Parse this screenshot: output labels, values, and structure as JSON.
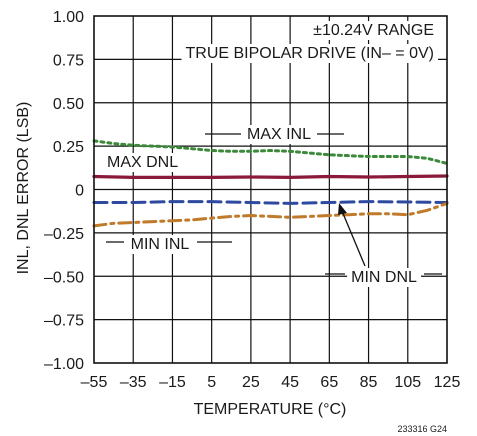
{
  "chart_data": {
    "type": "line",
    "xlabel": "TEMPERATURE (°C)",
    "ylabel": "INL, DNL ERROR (LSB)",
    "xlim": [
      -55,
      125
    ],
    "ylim": [
      -1.0,
      1.0
    ],
    "grid": true,
    "x_ticks": [
      -55,
      -35,
      -15,
      5,
      25,
      45,
      65,
      85,
      105,
      125
    ],
    "x_tick_labels": [
      "–55",
      "–35",
      "–15",
      "5",
      "25",
      "45",
      "65",
      "85",
      "105",
      "125"
    ],
    "y_ticks": [
      1.0,
      0.75,
      0.5,
      0.25,
      0,
      -0.25,
      -0.5,
      -0.75,
      -1.0
    ],
    "y_tick_labels": [
      "1.00",
      "0.75",
      "0.50",
      "0.25",
      "0",
      "–0.25",
      "–0.50",
      "–0.75",
      "–1.00"
    ],
    "annotations": {
      "range": "±10.24V RANGE",
      "drive": "TRUE BIPOLAR DRIVE (IN– = 0V)",
      "max_inl": "MAX INL",
      "max_dnl": "MAX DNL",
      "min_inl": "MIN INL",
      "min_dnl": "MIN DNL"
    },
    "figure_id": "233316 G24",
    "series": [
      {
        "name": "MAX INL",
        "color": "#3a8a3a",
        "dash": "dotted",
        "x": [
          -55,
          -45,
          -35,
          -25,
          -15,
          -5,
          5,
          15,
          25,
          35,
          45,
          55,
          65,
          75,
          85,
          95,
          105,
          115,
          125
        ],
        "y": [
          0.28,
          0.265,
          0.255,
          0.25,
          0.245,
          0.235,
          0.225,
          0.22,
          0.22,
          0.225,
          0.22,
          0.21,
          0.2,
          0.195,
          0.19,
          0.19,
          0.19,
          0.18,
          0.15
        ]
      },
      {
        "name": "MAX DNL",
        "color": "#8b1a3a",
        "dash": "solid",
        "x": [
          -55,
          -35,
          -15,
          5,
          25,
          45,
          65,
          85,
          105,
          125
        ],
        "y": [
          0.075,
          0.07,
          0.07,
          0.07,
          0.072,
          0.07,
          0.075,
          0.072,
          0.075,
          0.078
        ]
      },
      {
        "name": "MIN DNL",
        "color": "#2e4aa0",
        "dash": "dashed",
        "x": [
          -55,
          -35,
          -15,
          5,
          25,
          45,
          65,
          85,
          105,
          125
        ],
        "y": [
          -0.075,
          -0.075,
          -0.07,
          -0.07,
          -0.075,
          -0.08,
          -0.075,
          -0.07,
          -0.072,
          -0.075
        ]
      },
      {
        "name": "MIN INL",
        "color": "#c07a2a",
        "dash": "dashdot",
        "x": [
          -55,
          -45,
          -35,
          -25,
          -15,
          -5,
          5,
          15,
          25,
          35,
          45,
          55,
          65,
          75,
          85,
          95,
          105,
          115,
          125
        ],
        "y": [
          -0.21,
          -0.195,
          -0.19,
          -0.185,
          -0.18,
          -0.175,
          -0.165,
          -0.155,
          -0.15,
          -0.155,
          -0.16,
          -0.155,
          -0.15,
          -0.145,
          -0.14,
          -0.14,
          -0.145,
          -0.12,
          -0.08
        ]
      }
    ]
  }
}
